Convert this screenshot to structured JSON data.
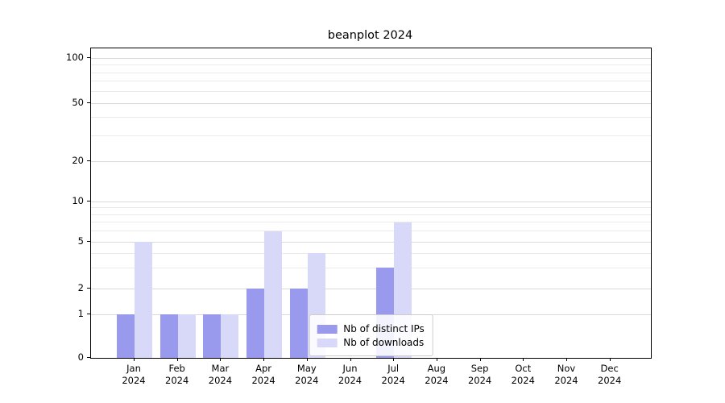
{
  "title": "beanplot 2024",
  "chart_data": {
    "type": "bar",
    "title": "beanplot 2024",
    "categories": [
      "Jan",
      "Feb",
      "Mar",
      "Apr",
      "May",
      "Jun",
      "Jul",
      "Aug",
      "Sep",
      "Oct",
      "Nov",
      "Dec"
    ],
    "year": "2024",
    "series": [
      {
        "name": "Nb of distinct IPs",
        "color": "#9999ee",
        "values": [
          1,
          1,
          1,
          2,
          2,
          0,
          3,
          0,
          0,
          0,
          0,
          0
        ]
      },
      {
        "name": "Nb of downloads",
        "color": "#d8d8f8",
        "values": [
          5,
          1,
          1,
          6,
          4,
          0,
          7,
          0,
          0,
          0,
          0,
          0
        ]
      }
    ],
    "yticks": [
      0,
      1,
      2,
      5,
      10,
      20,
      50,
      100
    ],
    "minor_gridlines": [
      3,
      4,
      6,
      7,
      8,
      9,
      30,
      40,
      60,
      70,
      80,
      90
    ],
    "ylim": [
      0,
      100
    ],
    "yscale": "log-like",
    "grid": true,
    "legend_position": "lower center",
    "colors": {
      "major_grid": "#d9d9d9",
      "minor_grid": "#eaeaea",
      "axis": "#000000"
    }
  }
}
